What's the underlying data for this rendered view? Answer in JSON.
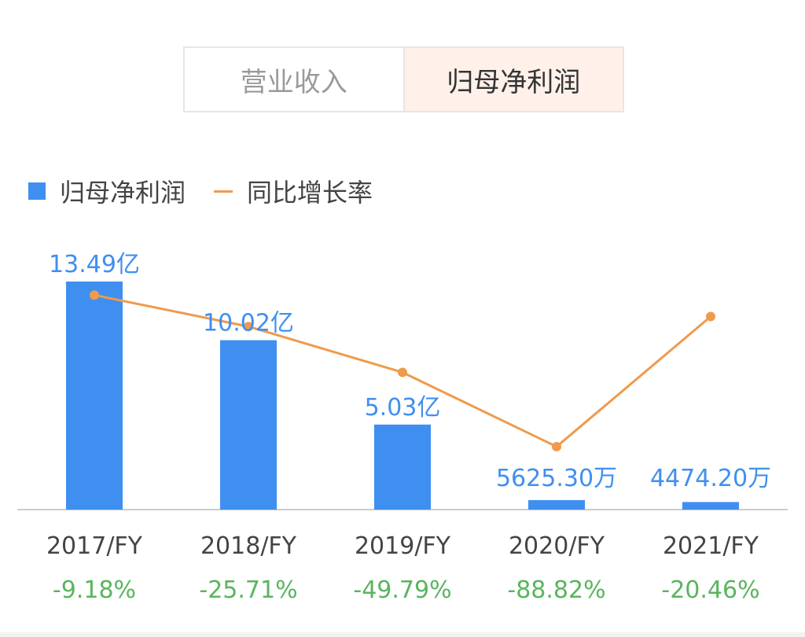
{
  "tabs": [
    {
      "label": "营业收入",
      "active": false
    },
    {
      "label": "归母净利润",
      "active": true
    }
  ],
  "legend": {
    "bar_label": "归母净利润",
    "line_label": "同比增长率"
  },
  "colors": {
    "bar": "#3f8ff0",
    "line": "#ef9a4c",
    "growth_text": "#59b55e",
    "category_text": "#444444",
    "value_label": "#3f8ff0",
    "axis": "#cccccc"
  },
  "chart_data": {
    "type": "bar",
    "categories": [
      "2017/FY",
      "2018/FY",
      "2019/FY",
      "2020/FY",
      "2021/FY"
    ],
    "series": [
      {
        "name": "归母净利润",
        "type": "bar",
        "unit": "亿",
        "values": [
          13.49,
          10.02,
          5.03,
          0.56253,
          0.44742
        ],
        "labels": [
          "13.49亿",
          "10.02亿",
          "5.03亿",
          "5625.30万",
          "4474.20万"
        ]
      },
      {
        "name": "同比增长率",
        "type": "line",
        "unit": "%",
        "values": [
          -9.18,
          -25.71,
          -49.79,
          -88.82,
          -20.46
        ],
        "labels": [
          "-9.18%",
          "-25.71%",
          "-49.79%",
          "-88.82%",
          "-20.46%"
        ]
      }
    ],
    "ylim_bar": [
      0,
      13.49
    ],
    "ylim_line": [
      -100,
      0
    ],
    "grid": false,
    "legend_position": "top-left"
  }
}
